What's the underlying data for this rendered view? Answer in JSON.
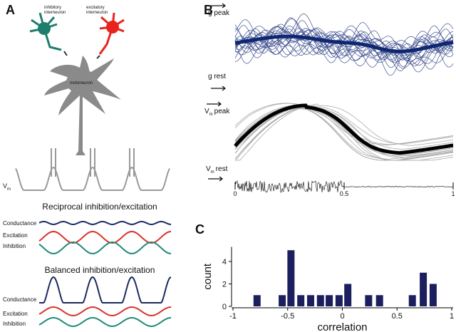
{
  "panel_a": {
    "label": "A",
    "inhibitory": [
      "inhibitory",
      "interneuron"
    ],
    "excitatory": [
      "excitatory",
      "interneuron"
    ],
    "motoneuron": "motoneuron",
    "vm": {
      "main": "V",
      "sub": "m"
    },
    "reciprocal": {
      "title": "Reciprocal inhibition/excitation",
      "conductance": "Conductance",
      "excitation": "Excitation",
      "inhibition": "Inhibition"
    },
    "balanced": {
      "title": "Balanced inhibition/excitation",
      "conductance": "Conductance",
      "excitation": "Excitation",
      "inhibition": "Inhibition"
    }
  },
  "panel_b": {
    "label": "B",
    "g_peak": "g peak",
    "g_rest": "g rest",
    "vm_peak": {
      "main": "V",
      "sub": "m",
      "rest": "peak"
    },
    "vm_rest": {
      "main": "V",
      "sub": "m",
      "rest": "rest"
    },
    "xticks": [
      0,
      0.5,
      1
    ]
  },
  "panel_c": {
    "label": "C"
  },
  "chart_data": {
    "type": "bar",
    "x_label": "correlation",
    "y_label": "count",
    "x": [
      -0.78,
      -0.55,
      -0.47,
      -0.38,
      -0.29,
      -0.2,
      -0.12,
      -0.03,
      0.05,
      0.24,
      0.34,
      0.64,
      0.74,
      0.83
    ],
    "values": [
      1,
      1,
      5,
      1,
      1,
      1,
      1,
      1,
      2,
      1,
      1,
      1,
      3,
      2
    ],
    "color": "#1b1f5e",
    "xlim": [
      -1,
      1
    ],
    "xticks": [
      -1,
      -0.5,
      0,
      0.5,
      1
    ],
    "ylim": [
      0,
      5.3
    ],
    "yticks": [
      0,
      2,
      4
    ]
  }
}
